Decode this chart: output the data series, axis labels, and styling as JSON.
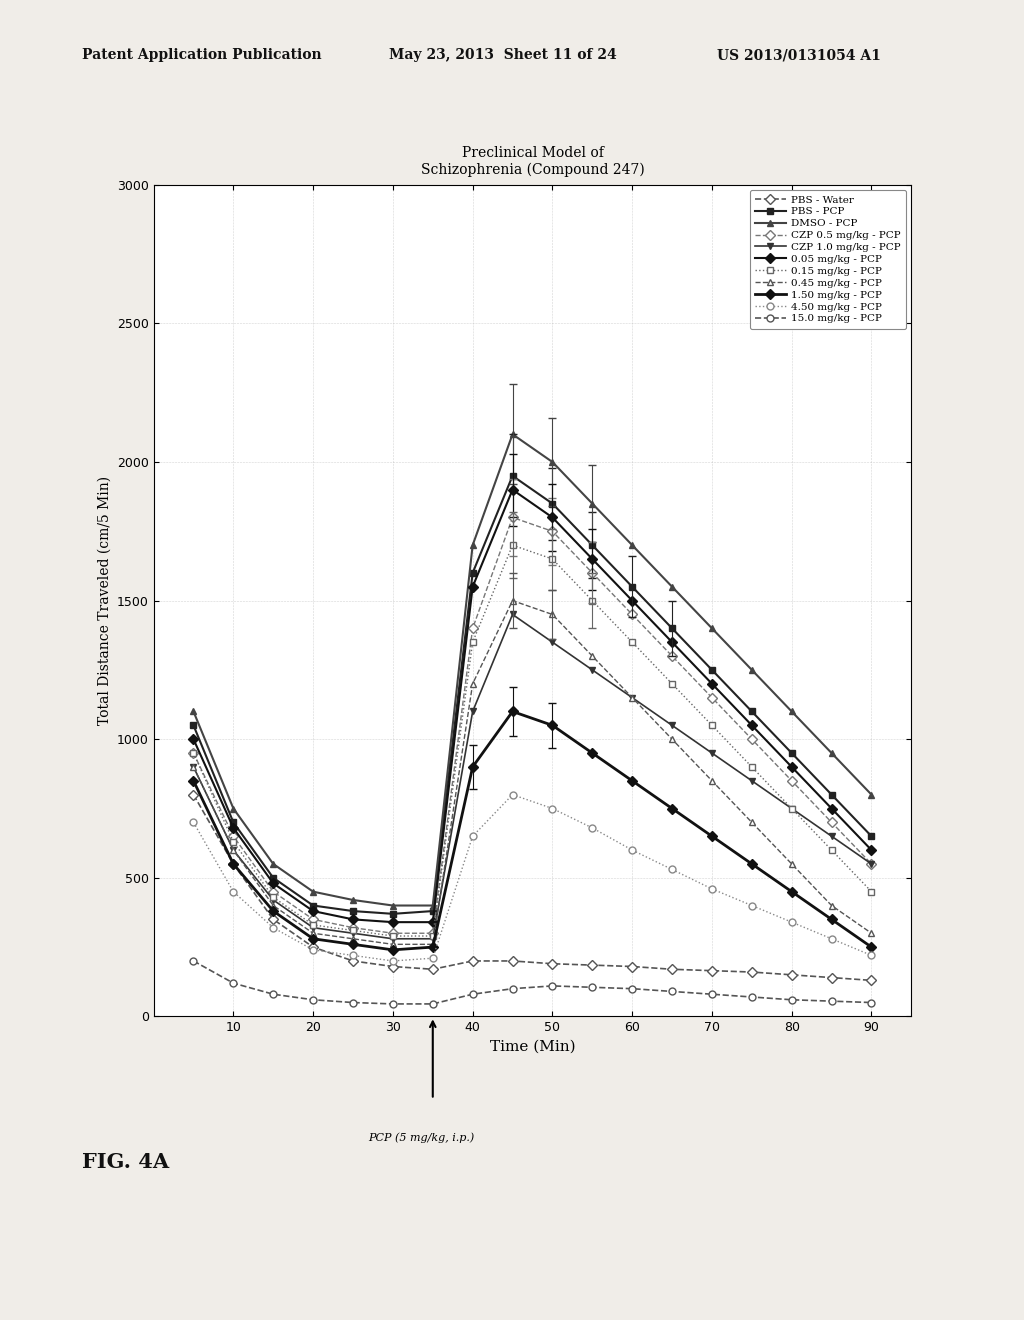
{
  "header_left": "Patent Application Publication",
  "header_mid": "May 23, 2013  Sheet 11 of 24",
  "header_right": "US 2013/0131054 A1",
  "title": "Preclinical Model of\nSchizophrenia (Compound 247)",
  "xlabel": "Time (Min)",
  "ylabel": "Total Distance Traveled (cm/5 Min)",
  "fig_label": "FIG. 4A",
  "pcp_label": "PCP (5 mg/kg, i.p.)",
  "pcp_time": 35,
  "xlim": [
    0,
    95
  ],
  "ylim": [
    0,
    3000
  ],
  "xticks": [
    10,
    20,
    30,
    40,
    50,
    60,
    70,
    80,
    90
  ],
  "yticks": [
    0,
    500,
    1000,
    1500,
    2000,
    2500,
    3000
  ],
  "time_points": [
    5,
    10,
    15,
    20,
    25,
    30,
    35,
    40,
    45,
    50,
    55,
    60,
    65,
    70,
    75,
    80,
    85,
    90
  ],
  "series": [
    {
      "label": "PBS - Water",
      "color": "#555555",
      "linestyle": "--",
      "marker": "D",
      "marker_filled": false,
      "linewidth": 1.2,
      "values": [
        800,
        550,
        350,
        250,
        200,
        180,
        170,
        200,
        200,
        190,
        185,
        180,
        170,
        165,
        160,
        150,
        140,
        130
      ]
    },
    {
      "label": "PBS - PCP",
      "color": "#222222",
      "linestyle": "-",
      "marker": "s",
      "marker_filled": true,
      "linewidth": 1.5,
      "values": [
        1050,
        700,
        500,
        400,
        380,
        370,
        380,
        1600,
        1950,
        1850,
        1700,
        1550,
        1400,
        1250,
        1100,
        950,
        800,
        650
      ]
    },
    {
      "label": "DMSO - PCP",
      "color": "#444444",
      "linestyle": "-",
      "marker": "^",
      "marker_filled": true,
      "linewidth": 1.5,
      "values": [
        1100,
        750,
        550,
        450,
        420,
        400,
        400,
        1700,
        2100,
        2000,
        1850,
        1700,
        1550,
        1400,
        1250,
        1100,
        950,
        800
      ]
    },
    {
      "label": "CZP 0.5 mg/kg - PCP",
      "color": "#777777",
      "linestyle": "--",
      "marker": "D",
      "marker_filled": false,
      "linewidth": 1.0,
      "values": [
        950,
        650,
        450,
        350,
        320,
        300,
        300,
        1400,
        1800,
        1750,
        1600,
        1450,
        1300,
        1150,
        1000,
        850,
        700,
        550
      ]
    },
    {
      "label": "CZP 1.0 mg/kg - PCP",
      "color": "#333333",
      "linestyle": "-",
      "marker": "v",
      "marker_filled": true,
      "linewidth": 1.2,
      "values": [
        900,
        600,
        420,
        320,
        300,
        280,
        280,
        1100,
        1450,
        1350,
        1250,
        1150,
        1050,
        950,
        850,
        750,
        650,
        550
      ]
    },
    {
      "label": "0.05 mg/kg - PCP",
      "color": "#111111",
      "linestyle": "-",
      "marker": "D",
      "marker_filled": true,
      "linewidth": 1.5,
      "values": [
        1000,
        680,
        480,
        380,
        350,
        340,
        340,
        1550,
        1900,
        1800,
        1650,
        1500,
        1350,
        1200,
        1050,
        900,
        750,
        600
      ]
    },
    {
      "label": "0.15 mg/kg - PCP",
      "color": "#666666",
      "linestyle": ":",
      "marker": "s",
      "marker_filled": false,
      "linewidth": 1.0,
      "values": [
        950,
        630,
        430,
        330,
        310,
        290,
        290,
        1350,
        1700,
        1650,
        1500,
        1350,
        1200,
        1050,
        900,
        750,
        600,
        450
      ]
    },
    {
      "label": "0.45 mg/kg - PCP",
      "color": "#555555",
      "linestyle": "--",
      "marker": "^",
      "marker_filled": false,
      "linewidth": 1.0,
      "values": [
        900,
        600,
        400,
        300,
        280,
        260,
        260,
        1200,
        1500,
        1450,
        1300,
        1150,
        1000,
        850,
        700,
        550,
        400,
        300
      ]
    },
    {
      "label": "1.50 mg/kg - PCP",
      "color": "#111111",
      "linestyle": "-",
      "marker": "D",
      "marker_filled": true,
      "linewidth": 2.0,
      "values": [
        850,
        550,
        380,
        280,
        260,
        240,
        250,
        900,
        1100,
        1050,
        950,
        850,
        750,
        650,
        550,
        450,
        350,
        250
      ]
    },
    {
      "label": "4.50 mg/kg - PCP",
      "color": "#888888",
      "linestyle": ":",
      "marker": "o",
      "marker_filled": false,
      "linewidth": 1.0,
      "values": [
        700,
        450,
        320,
        240,
        220,
        200,
        210,
        650,
        800,
        750,
        680,
        600,
        530,
        460,
        400,
        340,
        280,
        220
      ]
    },
    {
      "label": "15.0 mg/kg - PCP",
      "color": "#555555",
      "linestyle": "--",
      "marker": "o",
      "marker_filled": false,
      "linewidth": 1.2,
      "values": [
        200,
        120,
        80,
        60,
        50,
        45,
        45,
        80,
        100,
        110,
        105,
        100,
        90,
        80,
        70,
        60,
        55,
        50
      ]
    }
  ],
  "background_color": "#ffffff",
  "page_bg": "#f0ede8"
}
